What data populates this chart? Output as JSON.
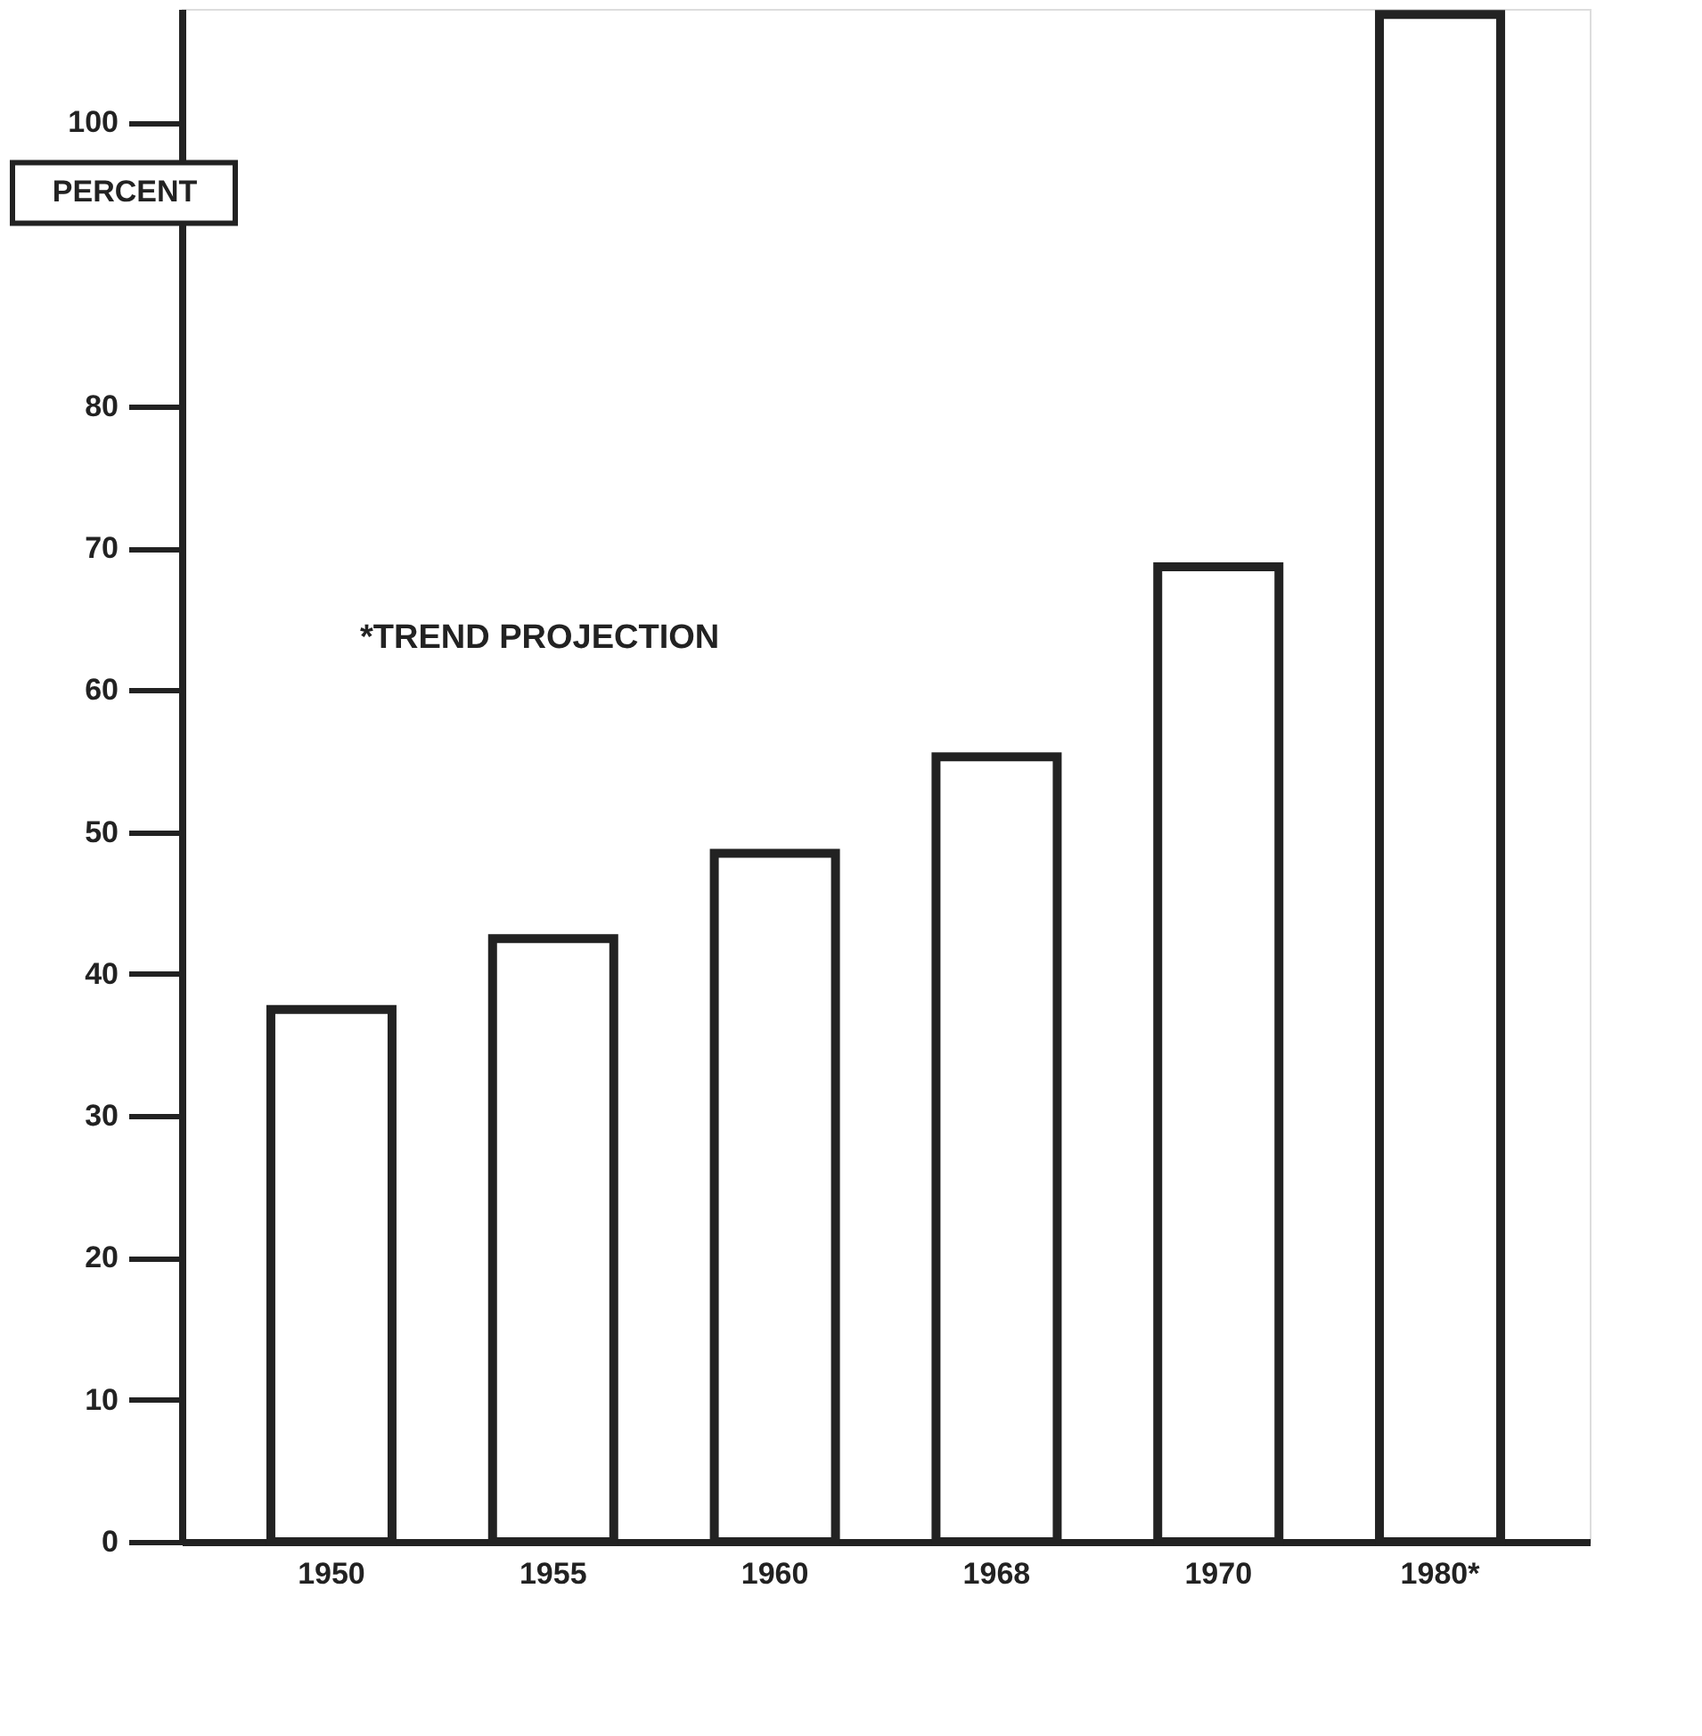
{
  "chart_data": {
    "type": "bar",
    "ylabel": "PERCENT",
    "categories": [
      "1950",
      "1955",
      "1960",
      "1968",
      "1970",
      "1980*"
    ],
    "values": [
      37.5,
      42.5,
      48.5,
      55.3,
      68.7,
      107.6
    ],
    "color": "#222222",
    "ylim": [
      0,
      108
    ],
    "yticks": [
      0,
      10,
      20,
      30,
      40,
      50,
      60,
      70,
      80,
      100
    ],
    "annotations": [
      "*TREND PROJECTION"
    ],
    "grid": false
  }
}
